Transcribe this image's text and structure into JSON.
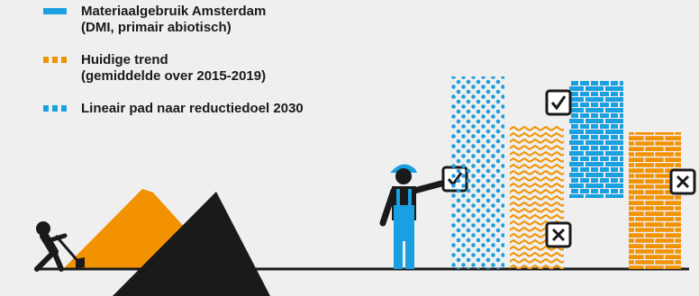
{
  "legend": [
    {
      "line1": "Materiaalgebruik Amsterdam",
      "line2": "(DMI, primair abiotisch)",
      "swatch_style": "solid",
      "color": "#1aa0e0"
    },
    {
      "line1": "Huidige trend",
      "line2": "(gemiddelde over 2015-2019)",
      "swatch_style": "dashed",
      "color": "#f39200"
    },
    {
      "line1": "Lineair pad naar reductiedoel 2030",
      "line2": "",
      "swatch_style": "dashed",
      "color": "#1aa0e0"
    }
  ],
  "colors": {
    "background": "#efefef",
    "blue": "#1aa0e0",
    "orange": "#f39200",
    "dark": "#1a1a1a"
  },
  "icons": {
    "worker_left": "digging-worker-icon",
    "worker_right": "construction-worker-icon",
    "check": "checkbox-checked-icon",
    "cross": "checkbox-cross-icon"
  }
}
